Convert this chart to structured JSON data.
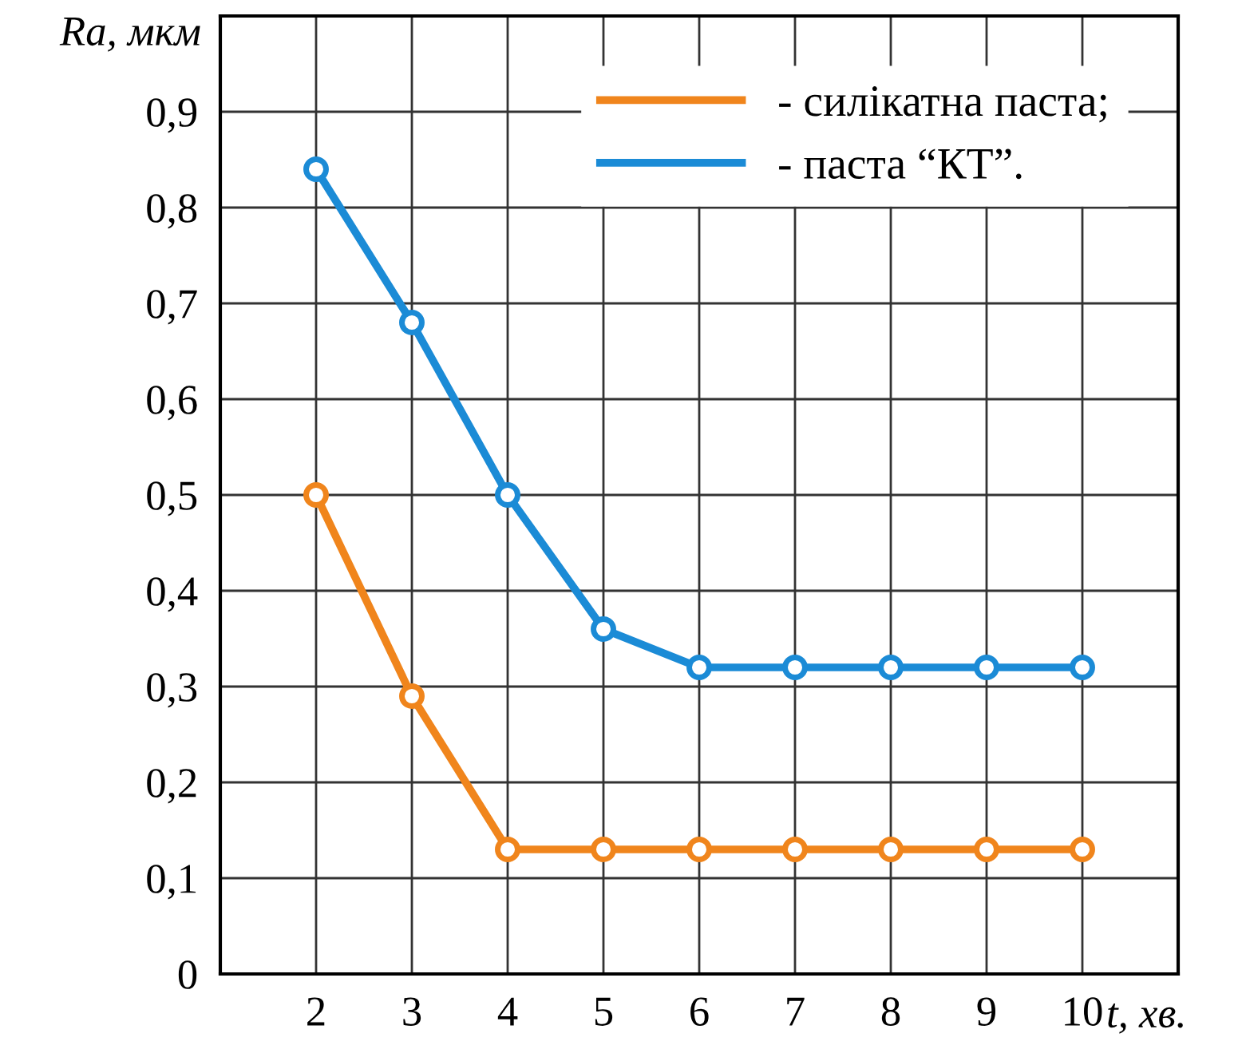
{
  "chart_data": {
    "type": "line",
    "xlabel": "t, хв.",
    "ylabel": "Ra, мкм",
    "x": [
      2,
      3,
      4,
      5,
      6,
      7,
      8,
      9,
      10
    ],
    "series": [
      {
        "name": "- силікатна паста;",
        "color": "#f0851c",
        "values": [
          0.5,
          0.29,
          0.13,
          0.13,
          0.13,
          0.13,
          0.13,
          0.13,
          0.13
        ]
      },
      {
        "name": "- паста “КТ”.",
        "color": "#1b8bd6",
        "values": [
          0.84,
          0.68,
          0.5,
          0.36,
          0.32,
          0.32,
          0.32,
          0.32,
          0.32
        ]
      }
    ],
    "xlim": [
      1,
      11
    ],
    "ylim": [
      0,
      1.0
    ],
    "xticks": [
      2,
      3,
      4,
      5,
      6,
      7,
      8,
      9,
      10
    ],
    "yticks": [
      0,
      {
        "value": 0.1,
        "label": "0,1"
      },
      {
        "value": 0.2,
        "label": "0,2"
      },
      {
        "value": 0.3,
        "label": "0,3"
      },
      {
        "value": 0.4,
        "label": "0,4"
      },
      {
        "value": 0.5,
        "label": "0,5"
      },
      {
        "value": 0.6,
        "label": "0,6"
      },
      {
        "value": 0.7,
        "label": "0,7"
      },
      {
        "value": 0.8,
        "label": "0,8"
      },
      {
        "value": 0.9,
        "label": "0,9"
      }
    ],
    "grid": true,
    "legend": "top right",
    "marker": "circle",
    "line_style": "solid"
  }
}
